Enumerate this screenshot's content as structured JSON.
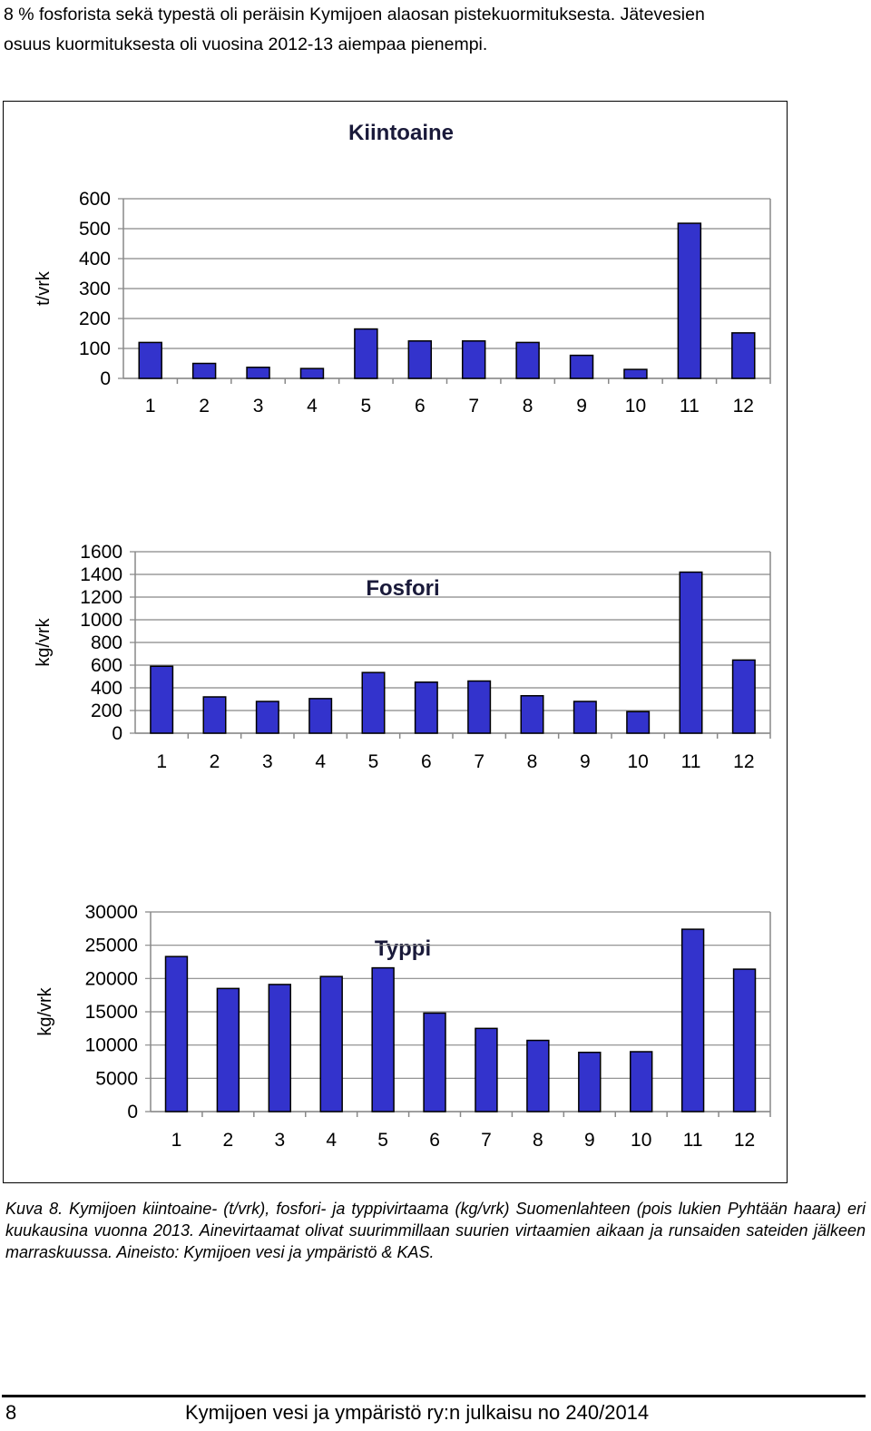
{
  "intro": {
    "line1": "8 % fosforista sekä typestä oli peräisin Kymijoen alaosan pistekuormituksesta. Jätevesien",
    "line2": "osuus kuormituksesta oli vuosina 2012-13 aiempaa pienempi."
  },
  "chart_data": [
    {
      "type": "bar",
      "title": "Kiintoaine",
      "ylabel": "t/vrk",
      "xlabel": "",
      "categories": [
        "1",
        "2",
        "3",
        "4",
        "5",
        "6",
        "7",
        "8",
        "9",
        "10",
        "11",
        "12"
      ],
      "values": [
        120,
        50,
        37,
        33,
        165,
        125,
        125,
        120,
        77,
        30,
        518,
        152
      ],
      "ylim": [
        0,
        600
      ],
      "yticks": [
        0,
        100,
        200,
        300,
        400,
        500,
        600
      ],
      "ytick_labels": [
        "0",
        "100",
        "200",
        "300",
        "400",
        "500",
        "600"
      ],
      "grid": true,
      "bar_color": "#3333cc"
    },
    {
      "type": "bar",
      "title": "Fosfori",
      "ylabel": "kg/vrk",
      "xlabel": "",
      "categories": [
        "1",
        "2",
        "3",
        "4",
        "5",
        "6",
        "7",
        "8",
        "9",
        "10",
        "11",
        "12"
      ],
      "values": [
        590,
        320,
        280,
        305,
        535,
        450,
        460,
        330,
        280,
        190,
        1420,
        645
      ],
      "ylim": [
        0,
        1600
      ],
      "yticks": [
        0,
        200,
        400,
        600,
        800,
        1000,
        1200,
        1400,
        1600
      ],
      "ytick_labels": [
        "0",
        "200",
        "400",
        "600",
        "800",
        "1000",
        "1200",
        "1400",
        "1600"
      ],
      "grid": true,
      "bar_color": "#3333cc"
    },
    {
      "type": "bar",
      "title": "Typpi",
      "ylabel": "kg/vrk",
      "xlabel": "",
      "categories": [
        "1",
        "2",
        "3",
        "4",
        "5",
        "6",
        "7",
        "8",
        "9",
        "10",
        "11",
        "12"
      ],
      "values": [
        23300,
        18500,
        19100,
        20300,
        21600,
        14800,
        12500,
        10700,
        8900,
        9000,
        27400,
        21400
      ],
      "ylim": [
        0,
        30000
      ],
      "yticks": [
        0,
        5000,
        10000,
        15000,
        20000,
        25000,
        30000
      ],
      "ytick_labels": [
        "0",
        "5000",
        "10000",
        "15000",
        "20000",
        "25000",
        "30000"
      ],
      "grid": true,
      "bar_color": "#3333cc"
    }
  ],
  "caption": {
    "label": "Kuva 8.",
    "text": "Kymijoen kiintoaine- (t/vrk), fosfori- ja typpivirtaama (kg/vrk) Suomenlahteen (pois lukien Pyhtään haara) eri kuukausina vuonna 2013. Ainevirtaamat olivat suurimmillaan suurien virtaamien aikaan ja runsaiden sateiden jälkeen marraskuussa. Aineisto: Kymijoen vesi ja ympäristö & KAS."
  },
  "footer": {
    "page_number": "8",
    "publication": "Kymijoen vesi ja ympäristö ry:n julkaisu no 240/2014"
  }
}
